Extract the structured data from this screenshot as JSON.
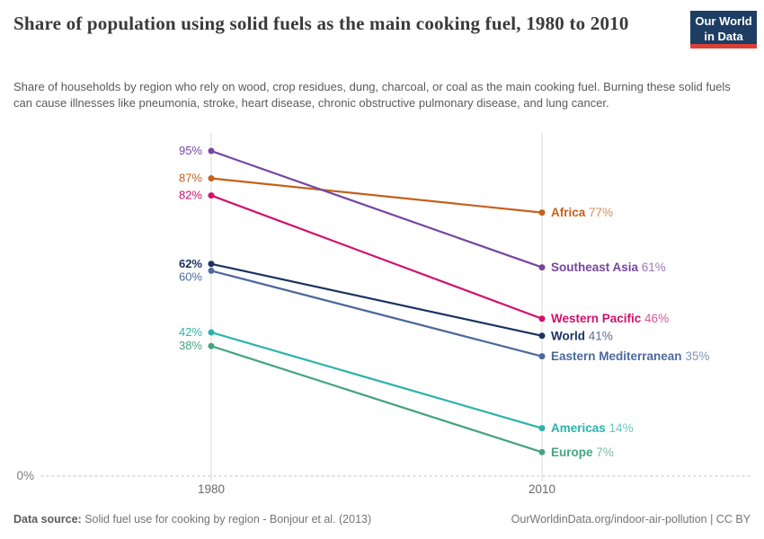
{
  "logo": {
    "line1": "Our World",
    "line2": "in Data",
    "bg_color": "#1d3d63",
    "accent_color": "#dc3f34"
  },
  "chart_data": {
    "type": "line",
    "subtype": "slope",
    "title": "Share of population using solid fuels as the main cooking fuel, 1980 to 2010",
    "subtitle": "Share of households by region who rely on wood, crop residues, dung, charcoal, or coal as the main cooking fuel. Burning these solid fuels can cause illnesses like pneumonia, stroke, heart disease, chronic obstructive pulmonary disease, and lung cancer.",
    "x": [
      "1980",
      "2010"
    ],
    "unit": "%",
    "ylim": [
      0,
      100
    ],
    "y_zero_label": "0%",
    "grid": "vertical gridline at each x tick; dotted baseline at 0%",
    "legend_position": "end-of-line labels",
    "series": [
      {
        "name": "Africa",
        "values": [
          87,
          77
        ],
        "color": "#c4611e"
      },
      {
        "name": "Southeast Asia",
        "values": [
          95,
          61
        ],
        "color": "#7646a0"
      },
      {
        "name": "Western Pacific",
        "values": [
          82,
          46
        ],
        "color": "#d2106b"
      },
      {
        "name": "World",
        "values": [
          62,
          41
        ],
        "color": "#1a3360",
        "bold": true
      },
      {
        "name": "Eastern Mediterranean",
        "values": [
          60,
          35
        ],
        "color": "#4c6a9c"
      },
      {
        "name": "Americas",
        "values": [
          42,
          14
        ],
        "color": "#2bb3ab"
      },
      {
        "name": "Europe",
        "values": [
          38,
          7
        ],
        "color": "#45a47d"
      }
    ]
  },
  "footer": {
    "source_label": "Data source:",
    "source_text": "Solid fuel use for cooking by region - Bonjour et al. (2013)",
    "attribution": "OurWorldinData.org/indoor-air-pollution | CC BY"
  }
}
